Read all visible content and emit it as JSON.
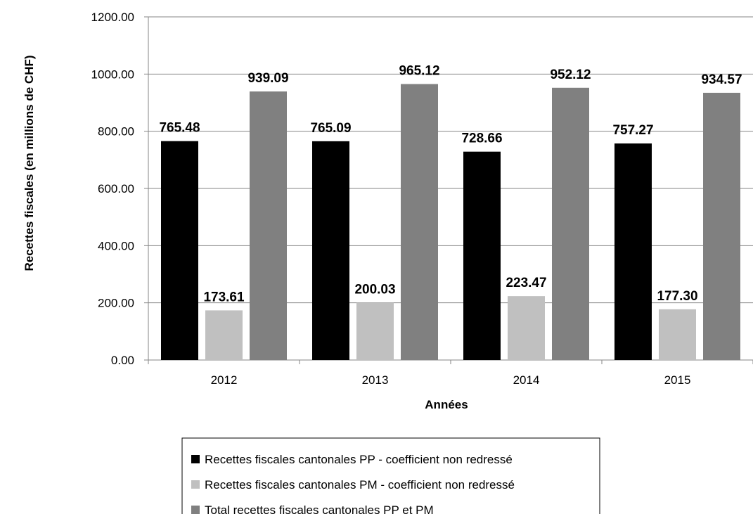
{
  "chart_data": {
    "type": "bar",
    "categories": [
      "2012",
      "2013",
      "2014",
      "2015"
    ],
    "series": [
      {
        "name": "Recettes fiscales cantonales PP - coefficient non redressé",
        "values": [
          765.48,
          765.09,
          728.66,
          757.27
        ],
        "color": "#000000"
      },
      {
        "name": "Recettes fiscales cantonales PM - coefficient non redressé",
        "values": [
          173.61,
          200.03,
          223.47,
          177.3
        ],
        "color": "#c0c0c0"
      },
      {
        "name": "Total recettes fiscales cantonales PP et PM",
        "values": [
          939.09,
          965.12,
          952.12,
          934.57
        ],
        "color": "#808080"
      }
    ],
    "xlabel": "Années",
    "ylabel": "Recettes fiscales (en millions de CHF)",
    "ylim": [
      0,
      1200
    ],
    "yticks": [
      "0.00",
      "200.00",
      "400.00",
      "600.00",
      "800.00",
      "1000.00",
      "1200.00"
    ],
    "value_format_decimals": 2,
    "grid": true,
    "legend_position": "bottom"
  }
}
